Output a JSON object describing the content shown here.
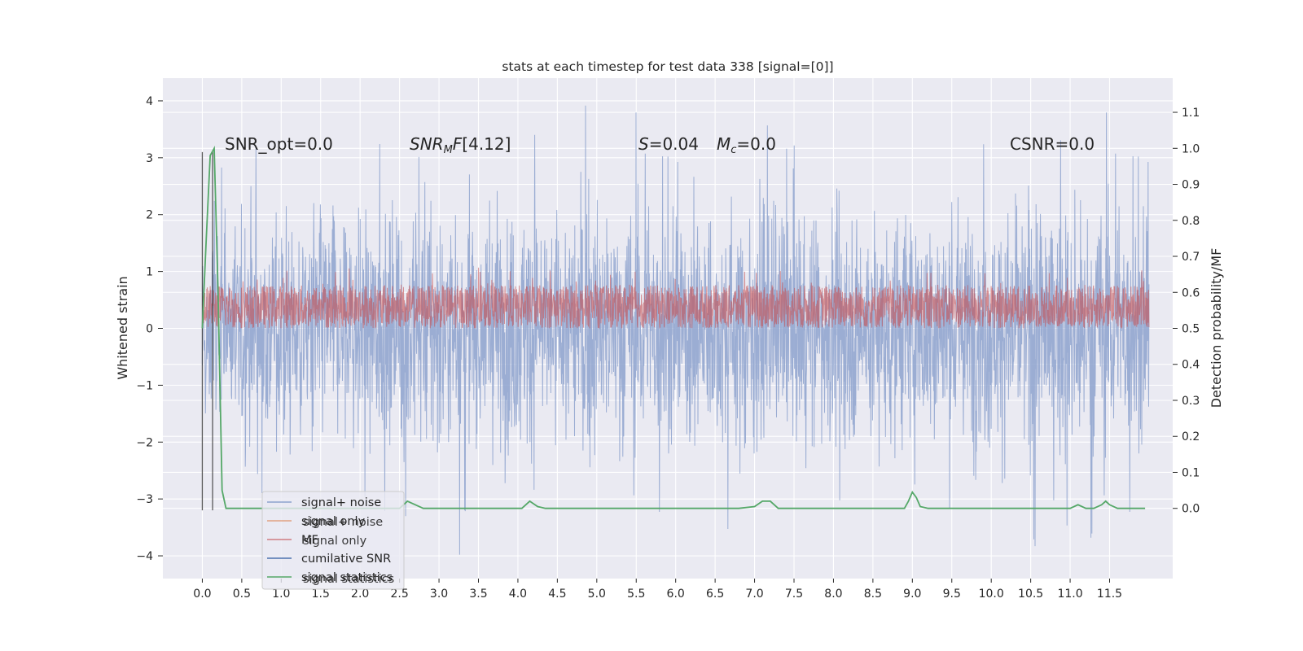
{
  "chart_data": {
    "type": "line",
    "title": "stats at each timestep for test data 338 [signal=[0]]",
    "ylabel": "Whitened strain",
    "y2label": "Detection probability/MF",
    "xlim": [
      -0.5,
      12.3
    ],
    "ylim": [
      -4.4,
      4.4
    ],
    "y2lim": [
      -0.195,
      1.195
    ],
    "grid": true,
    "legend_location": "lower left",
    "x_ticks": [
      "0.0",
      "0.5",
      "1.0",
      "1.5",
      "2.0",
      "2.5",
      "3.0",
      "3.5",
      "4.0",
      "4.5",
      "5.0",
      "5.5",
      "6.0",
      "6.5",
      "7.0",
      "7.5",
      "8.0",
      "8.5",
      "9.0",
      "9.5",
      "10.0",
      "10.5",
      "11.0",
      "11.5"
    ],
    "y_ticks": [
      -4,
      -3,
      -2,
      -1,
      0,
      1,
      2,
      3,
      4
    ],
    "y2_ticks": [
      "0.0",
      "0.1",
      "0.2",
      "0.3",
      "0.4",
      "0.5",
      "0.6",
      "0.7",
      "0.8",
      "0.9",
      "1.0",
      "1.1"
    ],
    "annotations": {
      "snr_opt": "SNR_opt=0.0",
      "snr_mf": "[4.12]",
      "s": "S=0.04",
      "mc": "=0.0",
      "csnr": "CSNR=0.0"
    },
    "legend": [
      "signal+ noise",
      "signal only",
      "MF",
      "cumilative SNR",
      "signal statistics"
    ],
    "legend_ghost": [
      "signal+ noise",
      "signal only",
      "signal statistics"
    ],
    "colors": {
      "background": "#EAEAF2",
      "grid": "#FFFFFF",
      "noise": "#8DA2CE",
      "signal_only": "#DD8452",
      "mf": "#C44E52",
      "cumulative_snr": "#4C72B0",
      "statistics": "#55A868",
      "vertical_line": "#333333"
    },
    "series": [
      {
        "name": "signal+ noise",
        "kind": "dense_noise",
        "x_range": [
          0.0,
          12.0
        ],
        "min": -4.1,
        "max": 3.97,
        "typical_range": [
          -2.0,
          2.0
        ]
      },
      {
        "name": "MF",
        "kind": "dense_band_right_axis",
        "x_range": [
          0.0,
          12.0
        ],
        "band": [
          0.5,
          0.62
        ],
        "max": 0.67
      },
      {
        "name": "signal statistics",
        "kind": "line_right_axis",
        "x": [
          0.0,
          0.05,
          0.1,
          0.15,
          0.2,
          0.25,
          0.3,
          2.5,
          2.6,
          2.7,
          2.8,
          4.05,
          4.15,
          4.25,
          4.35,
          4.45,
          4.6,
          6.8,
          7.0,
          7.1,
          7.2,
          7.3,
          7.4,
          8.9,
          8.95,
          9.0,
          9.05,
          9.1,
          9.2,
          11.0,
          11.1,
          11.2,
          11.3,
          11.4,
          11.45,
          11.5,
          11.6,
          11.7,
          11.95
        ],
        "values": [
          0.5,
          0.75,
          0.98,
          1.0,
          0.6,
          0.05,
          0.0,
          0.0,
          0.02,
          0.01,
          0.0,
          0.0,
          0.02,
          0.005,
          0.0,
          0.0,
          0.0,
          0.0,
          0.005,
          0.02,
          0.02,
          0.0,
          0.0,
          0.0,
          0.02,
          0.045,
          0.03,
          0.005,
          0.0,
          0.0,
          0.01,
          0.0,
          0.0,
          0.01,
          0.02,
          0.01,
          0.0,
          0.0,
          0.0
        ]
      },
      {
        "name": "vertical markers",
        "kind": "vlines",
        "x": [
          0.0,
          0.13
        ],
        "y_range": [
          -3.2,
          3.1
        ]
      }
    ]
  }
}
